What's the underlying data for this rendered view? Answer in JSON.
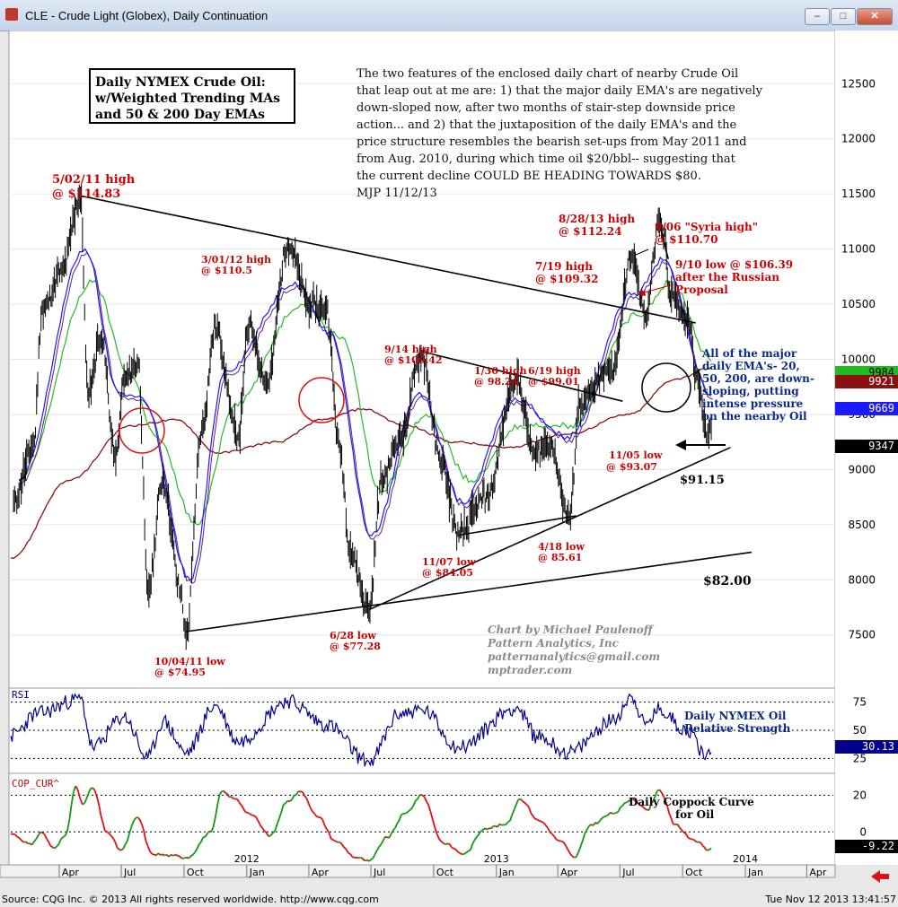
{
  "window": {
    "title": "CLE - Crude Light (Globex), Daily Continuation",
    "buttons": [
      "–",
      "□",
      "✕"
    ]
  },
  "title_box": [
    "Daily NYMEX Crude Oil:",
    "w/Weighted Trending MAs",
    "and 50 & 200 Day EMAs"
  ],
  "commentary": [
    "The two features of the enclosed daily chart of nearby Crude Oil",
    "that leap out at me are: 1) that the major daily EMA's are negatively",
    "down-sloped now, after two months of stair-step downside price",
    "action... and 2) that the juxtaposition of the daily EMA's and the",
    "price structure resembles the bearish set-ups from May 2011 and",
    "from Aug. 2010, during which time oil $20/bbl-- suggesting that",
    "the current decline COULD BE HEADING TOWARDS $80.",
    "MJP  11/12/13"
  ],
  "credit": [
    "Chart by Michael Paulenoff",
    "Pattern Analytics, Inc",
    "patternanalytics@gmail.com",
    "mptrader.com"
  ],
  "colors": {
    "price": "#000000",
    "ema20": "#1a1aff",
    "wma": "#6a1a8a",
    "ema50": "#22bb22",
    "ema200": "#8b1010",
    "rsi": "#00008b",
    "coppock_up": "#119911",
    "coppock_down": "#dd1111",
    "annotation": "#cc0000",
    "comment": "#0a2a8a"
  },
  "chart_data": [
    {
      "type": "line",
      "title": "",
      "y_axis_ticks": [
        7500,
        8000,
        8500,
        9000,
        9500,
        10000,
        10500,
        11000,
        11500,
        12000,
        12500
      ],
      "ylim": [
        7050,
        12950
      ],
      "x_axis_month_labels": [
        "Apr",
        "Jul",
        "Oct",
        "Jan",
        "Apr",
        "Jul",
        "Oct",
        "Jan",
        "Apr",
        "Jul",
        "Oct",
        "Jan",
        "Apr"
      ],
      "x_axis_year_labels": [
        "2012",
        "2013",
        "2014"
      ],
      "xlim": [
        "2011-01-20",
        "2014-05-10"
      ],
      "series": [
        {
          "key": "price",
          "type": "ohlc",
          "points": [
            [
              "2011-01-24",
              8700
            ],
            [
              "2011-02-22",
              9200
            ],
            [
              "2011-03-07",
              10450
            ],
            [
              "2011-04-05",
              10800
            ],
            [
              "2011-05-02",
              11483
            ],
            [
              "2011-05-13",
              9700
            ],
            [
              "2011-06-01",
              10200
            ],
            [
              "2011-06-23",
              9100
            ],
            [
              "2011-07-05",
              9800
            ],
            [
              "2011-07-26",
              9950
            ],
            [
              "2011-08-09",
              7900
            ],
            [
              "2011-08-31",
              8900
            ],
            [
              "2011-09-26",
              7900
            ],
            [
              "2011-10-04",
              7495
            ],
            [
              "2011-10-27",
              9350
            ],
            [
              "2011-11-16",
              10300
            ],
            [
              "2011-12-19",
              9300
            ],
            [
              "2012-01-04",
              10300
            ],
            [
              "2012-01-31",
              9800
            ],
            [
              "2012-03-01",
              11050
            ],
            [
              "2012-04-03",
              10500
            ],
            [
              "2012-04-27",
              10450
            ],
            [
              "2012-05-16",
              9200
            ],
            [
              "2012-06-01",
              8250
            ],
            [
              "2012-06-28",
              7728
            ],
            [
              "2012-07-17",
              8900
            ],
            [
              "2012-08-13",
              9300
            ],
            [
              "2012-09-14",
              10042
            ],
            [
              "2012-10-10",
              9100
            ],
            [
              "2012-11-07",
              8405
            ],
            [
              "2012-12-17",
              8750
            ],
            [
              "2013-01-30",
              9824
            ],
            [
              "2013-02-26",
              9150
            ],
            [
              "2013-03-20",
              9250
            ],
            [
              "2013-04-18",
              8561
            ],
            [
              "2013-05-03",
              9600
            ],
            [
              "2013-06-19",
              9901
            ],
            [
              "2013-07-19",
              10932
            ],
            [
              "2013-08-07",
              10400
            ],
            [
              "2013-08-28",
              11224
            ],
            [
              "2013-09-06",
              11070
            ],
            [
              "2013-09-10",
              10639
            ],
            [
              "2013-10-08",
              10350
            ],
            [
              "2013-10-25",
              9750
            ],
            [
              "2013-11-05",
              9307
            ],
            [
              "2013-11-12",
              9347
            ]
          ]
        },
        {
          "key": "ema20",
          "label": "9669",
          "points": [
            [
              "2011-02-01",
              8900
            ],
            [
              "2011-05-09",
              11000
            ],
            [
              "2011-06-27",
              9700
            ],
            [
              "2011-08-01",
              9650
            ],
            [
              "2011-10-10",
              8000
            ],
            [
              "2011-12-01",
              9900
            ],
            [
              "2012-03-12",
              10700
            ],
            [
              "2012-05-01",
              10250
            ],
            [
              "2012-07-02",
              8400
            ],
            [
              "2012-09-10",
              9700
            ],
            [
              "2012-11-12",
              8700
            ],
            [
              "2013-01-28",
              9650
            ],
            [
              "2013-04-15",
              9300
            ],
            [
              "2013-07-22",
              10600
            ],
            [
              "2013-09-02",
              10900
            ],
            [
              "2013-11-12",
              9669
            ]
          ]
        },
        {
          "key": "ema50",
          "label": "9984",
          "points": [
            [
              "2011-02-01",
              8900
            ],
            [
              "2011-05-20",
              10700
            ],
            [
              "2011-07-15",
              9850
            ],
            [
              "2011-08-20",
              9300
            ],
            [
              "2011-10-20",
              8500
            ],
            [
              "2011-12-15",
              9600
            ],
            [
              "2012-03-20",
              10500
            ],
            [
              "2012-05-20",
              10200
            ],
            [
              "2012-07-15",
              8800
            ],
            [
              "2012-09-20",
              9500
            ],
            [
              "2012-11-25",
              8900
            ],
            [
              "2013-02-05",
              9400
            ],
            [
              "2013-04-20",
              9400
            ],
            [
              "2013-07-25",
              10400
            ],
            [
              "2013-09-15",
              10700
            ],
            [
              "2013-11-12",
              9984
            ]
          ]
        },
        {
          "key": "ema200",
          "label": "9921",
          "points": [
            [
              "2011-01-20",
              8200
            ],
            [
              "2011-04-15",
              8900
            ],
            [
              "2011-07-15",
              9400
            ],
            [
              "2011-09-20",
              9450
            ],
            [
              "2011-11-20",
              9150
            ],
            [
              "2012-02-15",
              9250
            ],
            [
              "2012-04-20",
              9450
            ],
            [
              "2012-06-20",
              9550
            ],
            [
              "2012-08-20",
              9400
            ],
            [
              "2012-11-01",
              9250
            ],
            [
              "2013-01-15",
              9200
            ],
            [
              "2013-04-15",
              9320
            ],
            [
              "2013-07-15",
              9500
            ],
            [
              "2013-09-20",
              9820
            ],
            [
              "2013-11-12",
              9921
            ]
          ]
        }
      ],
      "price_flags": {
        "last": "9347"
      },
      "trendlines": [
        {
          "from": [
            "2011-05-02",
            11483
          ],
          "to": [
            "2013-10-20",
            10330
          ]
        },
        {
          "from": [
            "2011-10-04",
            7530
          ],
          "to": [
            "2014-01-10",
            8250
          ],
          "label": "$82.00"
        },
        {
          "from": [
            "2012-06-28",
            7728
          ],
          "to": [
            "2013-12-10",
            9200
          ],
          "label": "$91.15"
        },
        {
          "from": [
            "2012-09-14",
            10070
          ],
          "to": [
            "2013-07-05",
            9620
          ]
        },
        {
          "from": [
            "2012-11-07",
            8405
          ],
          "to": [
            "2013-04-28",
            8580
          ]
        },
        {
          "from": [
            "2013-08-28",
            11224
          ],
          "to": [
            "2013-09-10",
            10910
          ]
        }
      ],
      "annotations": [
        {
          "lines": [
            "5/02/11 high",
            "@ $114.83"
          ]
        },
        {
          "lines": [
            "3/01/12 high",
            "@ $110.5"
          ]
        },
        {
          "lines": [
            "9/14 high",
            "@ $100.42"
          ]
        },
        {
          "lines": [
            "1/30 high",
            "@ 98.24"
          ]
        },
        {
          "lines": [
            "6/19 high",
            "@ $99.01"
          ]
        },
        {
          "lines": [
            "7/19 high",
            "@ $109.32"
          ]
        },
        {
          "lines": [
            "8/28/13 high",
            "@ $112.24"
          ]
        },
        {
          "lines": [
            "9/06 \"Syria high\"",
            "@ $110.70"
          ]
        },
        {
          "lines": [
            "9/10 low @ $106.39",
            "after the Russian",
            "Proposal"
          ]
        },
        {
          "lines": [
            "11/05 low",
            "@ $93.07"
          ]
        },
        {
          "lines": [
            "4/18 low",
            "@ 85.61"
          ]
        },
        {
          "lines": [
            "11/07 low",
            "@ $84.05"
          ]
        },
        {
          "lines": [
            "6/28 low",
            "@ $77.28"
          ]
        },
        {
          "lines": [
            "10/04/11 low",
            "@ $74.95"
          ]
        }
      ],
      "side_note": [
        "All of the major",
        "daily EMA's- 20,",
        "50, 200, are down-",
        "sloping, putting",
        "intense pressure",
        "on the nearby Oil"
      ]
    },
    {
      "type": "line",
      "title": "RSI",
      "y_axis_ticks": [
        25,
        50,
        75
      ],
      "ylim": [
        15,
        85
      ],
      "value_label": "30.13",
      "caption": [
        "Daily NYMEX Oil",
        "Relative Strength"
      ],
      "series": [
        {
          "key": "rsi",
          "points": [
            [
              "2011-01-20",
              45
            ],
            [
              "2011-03-01",
              65
            ],
            [
              "2011-05-02",
              78
            ],
            [
              "2011-05-20",
              35
            ],
            [
              "2011-07-05",
              62
            ],
            [
              "2011-08-09",
              25
            ],
            [
              "2011-08-31",
              58
            ],
            [
              "2011-10-04",
              30
            ],
            [
              "2011-11-16",
              72
            ],
            [
              "2011-12-19",
              40
            ],
            [
              "2012-03-01",
              76
            ],
            [
              "2012-04-27",
              55
            ],
            [
              "2012-06-28",
              22
            ],
            [
              "2012-08-13",
              65
            ],
            [
              "2012-09-14",
              68
            ],
            [
              "2012-11-07",
              35
            ],
            [
              "2013-01-30",
              70
            ],
            [
              "2013-03-01",
              45
            ],
            [
              "2013-04-18",
              30
            ],
            [
              "2013-06-19",
              58
            ],
            [
              "2013-07-19",
              80
            ],
            [
              "2013-08-07",
              55
            ],
            [
              "2013-08-28",
              68
            ],
            [
              "2013-10-08",
              50
            ],
            [
              "2013-11-05",
              28
            ],
            [
              "2013-11-12",
              30
            ]
          ]
        }
      ]
    },
    {
      "type": "line",
      "title": "COP_CUR^",
      "y_axis_ticks": [
        0,
        20
      ],
      "ylim": [
        -16,
        30
      ],
      "value_label": "-9.22",
      "caption": [
        "Daily Coppock Curve",
        "for Oil"
      ],
      "series": [
        {
          "key": "coppock",
          "points": [
            [
              "2011-01-20",
              -1
            ],
            [
              "2011-02-20",
              -7
            ],
            [
              "2011-03-05",
              0
            ],
            [
              "2011-03-25",
              -9
            ],
            [
              "2011-04-10",
              -2
            ],
            [
              "2011-04-25",
              25
            ],
            [
              "2011-05-05",
              15
            ],
            [
              "2011-05-20",
              24
            ],
            [
              "2011-06-10",
              0
            ],
            [
              "2011-07-01",
              -10
            ],
            [
              "2011-07-25",
              8
            ],
            [
              "2011-08-15",
              -12
            ],
            [
              "2011-09-15",
              -13
            ],
            [
              "2011-10-05",
              -14
            ],
            [
              "2011-11-10",
              0
            ],
            [
              "2011-11-25",
              22
            ],
            [
              "2011-12-15",
              18
            ],
            [
              "2012-01-05",
              10
            ],
            [
              "2012-02-05",
              -2
            ],
            [
              "2012-03-01",
              17
            ],
            [
              "2012-03-20",
              22
            ],
            [
              "2012-04-15",
              8
            ],
            [
              "2012-05-10",
              -5
            ],
            [
              "2012-06-10",
              -14
            ],
            [
              "2012-06-28",
              -16
            ],
            [
              "2012-07-25",
              -3
            ],
            [
              "2012-08-20",
              10
            ],
            [
              "2012-09-14",
              20
            ],
            [
              "2012-10-15",
              -6
            ],
            [
              "2012-11-15",
              -12
            ],
            [
              "2012-12-15",
              2
            ],
            [
              "2013-01-15",
              4
            ],
            [
              "2013-02-05",
              18
            ],
            [
              "2013-03-05",
              6
            ],
            [
              "2013-04-05",
              -5
            ],
            [
              "2013-04-25",
              -14
            ],
            [
              "2013-05-20",
              4
            ],
            [
              "2013-06-20",
              10
            ],
            [
              "2013-07-20",
              18
            ],
            [
              "2013-08-10",
              12
            ],
            [
              "2013-08-28",
              23
            ],
            [
              "2013-09-20",
              4
            ],
            [
              "2013-10-15",
              -4
            ],
            [
              "2013-10-28",
              -6
            ],
            [
              "2013-11-05",
              -10
            ],
            [
              "2013-11-12",
              -9
            ]
          ]
        }
      ]
    }
  ],
  "footer": {
    "left": "Source: CQG Inc. © 2013 All rights reserved worldwide. http://www.cqg.com",
    "right": "Tue Nov 12 2013 13:41:57"
  }
}
